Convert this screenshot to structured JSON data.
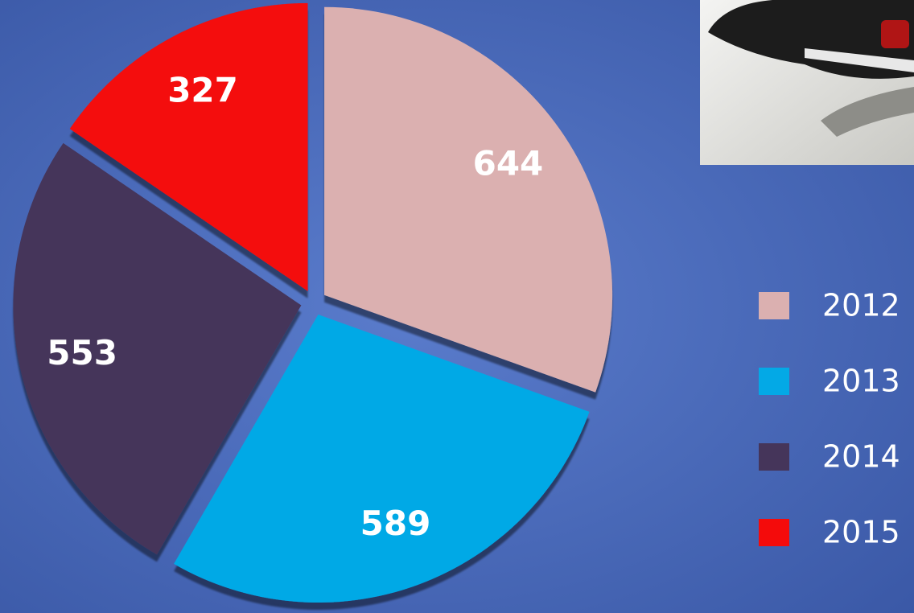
{
  "chart_data": {
    "type": "pie",
    "categories": [
      "2012",
      "2013",
      "2014",
      "2015"
    ],
    "values": [
      644,
      589,
      553,
      327
    ],
    "colors": [
      "#dbb0b0",
      "#03a9e6",
      "#45355a",
      "#f40b0b"
    ],
    "legend": "right"
  }
}
